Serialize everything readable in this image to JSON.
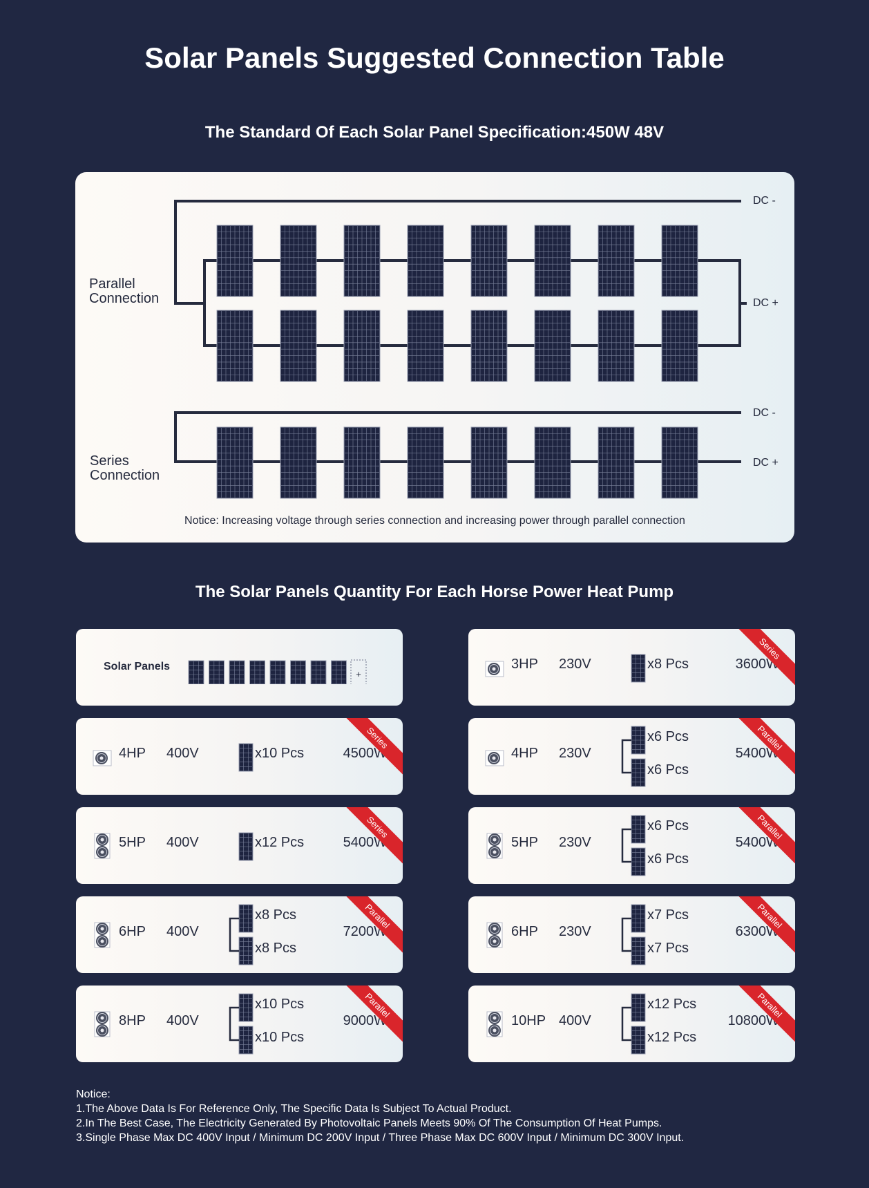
{
  "title": "Solar Panels Suggested Connection Table",
  "spec_heading": "The Standard Of Each Solar Panel Specification:450W 48V",
  "diagram": {
    "parallel_label": [
      "Parallel",
      "Connection"
    ],
    "series_label": [
      "Series",
      "Connection"
    ],
    "dc_minus": "DC -",
    "dc_plus": "DC +",
    "notice": "Notice: Increasing voltage through series connection and increasing power through parallel connection",
    "panels_per_row": 8
  },
  "quantity_heading": "The Solar Panels Quantity For Each Horse Power Heat Pump",
  "legend": {
    "label": "Solar Panels",
    "panel_count": 8,
    "plus": "+"
  },
  "rows": [
    {
      "hp": "3HP",
      "voltage": "230V",
      "qty": [
        "x8 Pcs"
      ],
      "power": "3600W",
      "connection": "Series",
      "fans": 1
    },
    {
      "hp": "4HP",
      "voltage": "400V",
      "qty": [
        "x10 Pcs"
      ],
      "power": "4500W",
      "connection": "Series",
      "fans": 1
    },
    {
      "hp": "4HP",
      "voltage": "230V",
      "qty": [
        "x6 Pcs",
        "x6 Pcs"
      ],
      "power": "5400W",
      "connection": "Parallel",
      "fans": 1
    },
    {
      "hp": "5HP",
      "voltage": "400V",
      "qty": [
        "x12 Pcs"
      ],
      "power": "5400W",
      "connection": "Series",
      "fans": 2
    },
    {
      "hp": "5HP",
      "voltage": "230V",
      "qty": [
        "x6 Pcs",
        "x6 Pcs"
      ],
      "power": "5400W",
      "connection": "Parallel",
      "fans": 2
    },
    {
      "hp": "6HP",
      "voltage": "400V",
      "qty": [
        "x8 Pcs",
        "x8 Pcs"
      ],
      "power": "7200W",
      "connection": "Parallel",
      "fans": 2
    },
    {
      "hp": "6HP",
      "voltage": "230V",
      "qty": [
        "x7 Pcs",
        "x7 Pcs"
      ],
      "power": "6300W",
      "connection": "Parallel",
      "fans": 2
    },
    {
      "hp": "8HP",
      "voltage": "400V",
      "qty": [
        "x10 Pcs",
        "x10 Pcs"
      ],
      "power": "9000W",
      "connection": "Parallel",
      "fans": 2
    },
    {
      "hp": "10HP",
      "voltage": "400V",
      "qty": [
        "x12 Pcs",
        "x12 Pcs"
      ],
      "power": "10800W",
      "connection": "Parallel",
      "fans": 2
    }
  ],
  "notes": [
    "Notice:",
    "1.The Above Data Is For Reference Only, The Specific Data Is Subject To Actual Product.",
    "2.In The Best Case, The Electricity Generated By Photovoltaic Panels Meets 90% Of The Consumption Of Heat Pumps.",
    "3.Single Phase Max DC 400V Input / Minimum DC 200V Input / Three Phase Max DC 600V Input / Minimum DC 300V Input."
  ],
  "colors": {
    "background": "#202742",
    "panel": "#1e2440",
    "ribbon": "#d9252b",
    "wire": "#262b3e"
  }
}
